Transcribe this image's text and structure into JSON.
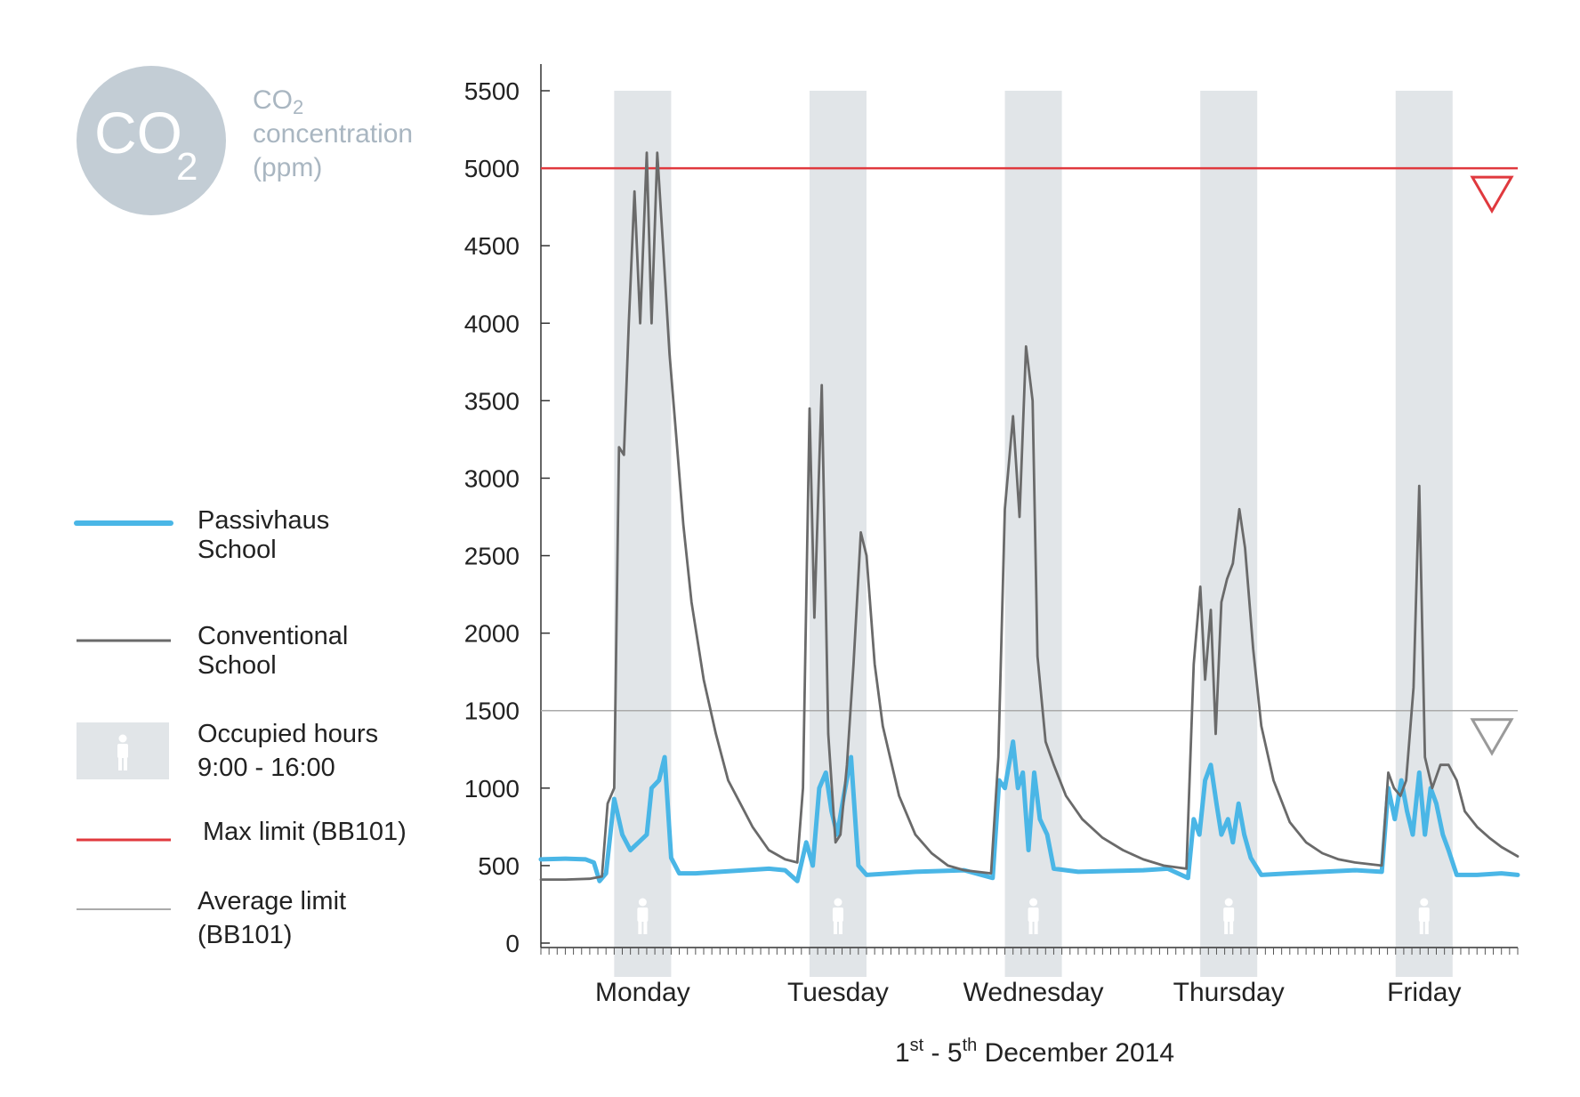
{
  "badge": {
    "symbol": "CO",
    "subscript": "2",
    "color": "#c3cdd5"
  },
  "unit_title": {
    "line1": "CO",
    "line1_sub": "2",
    "line2": "concentration",
    "line3": "(ppm)"
  },
  "legend": {
    "passivhaus": {
      "line1": "Passivhaus",
      "line2": "School",
      "color": "#4ab6e6"
    },
    "conventional": {
      "line1": "Conventional",
      "line2": "School",
      "color": "#6a6a6a"
    },
    "occupied": {
      "line1": "Occupied hours",
      "line2": "9:00 - 16:00",
      "color": "#e1e5e8"
    },
    "max_limit": {
      "line1": "Max limit (BB101)",
      "color": "#e0393e"
    },
    "avg_limit": {
      "line1": "Average limit",
      "line2": "(BB101)",
      "color": "#aaaaaa"
    }
  },
  "x_axis": {
    "prefix": "1",
    "sup1": "st",
    "mid": " - 5",
    "sup2": "th",
    "suffix": " December 2014"
  },
  "chart_data": {
    "type": "line",
    "ylim": [
      0,
      5500
    ],
    "yticks": [
      0,
      500,
      1000,
      1500,
      2000,
      2500,
      3000,
      3500,
      4000,
      4500,
      5000,
      5500
    ],
    "xlim": [
      0,
      120
    ],
    "days": [
      "Monday",
      "Tuesday",
      "Wednesday",
      "Thursday",
      "Friday"
    ],
    "occupied_hours": {
      "start": 9,
      "end": 16
    },
    "thresholds": [
      {
        "name": "Max limit (BB101)",
        "value": 5000,
        "color": "#e0393e"
      },
      {
        "name": "Average limit (BB101)",
        "value": 1500,
        "color": "#aaaaaa"
      }
    ],
    "series": [
      {
        "name": "Conventional School",
        "color": "#6a6a6a",
        "points": [
          [
            0,
            410
          ],
          [
            3,
            410
          ],
          [
            6,
            415
          ],
          [
            7.5,
            430
          ],
          [
            8.2,
            900
          ],
          [
            9,
            1000
          ],
          [
            9.6,
            3200
          ],
          [
            10.2,
            3150
          ],
          [
            10.8,
            4000
          ],
          [
            11.5,
            4850
          ],
          [
            12.2,
            4000
          ],
          [
            13,
            5100
          ],
          [
            13.6,
            4000
          ],
          [
            14.3,
            5100
          ],
          [
            15,
            4500
          ],
          [
            15.8,
            3800
          ],
          [
            16.5,
            3350
          ],
          [
            17.5,
            2700
          ],
          [
            18.5,
            2200
          ],
          [
            20,
            1700
          ],
          [
            21.5,
            1350
          ],
          [
            23,
            1050
          ],
          [
            24.5,
            900
          ],
          [
            26,
            750
          ],
          [
            28,
            600
          ],
          [
            30,
            540
          ],
          [
            31.5,
            520
          ],
          [
            32.2,
            1000
          ],
          [
            33,
            3450
          ],
          [
            33.6,
            2100
          ],
          [
            34.5,
            3600
          ],
          [
            35.3,
            1350
          ],
          [
            36.2,
            650
          ],
          [
            36.8,
            700
          ],
          [
            37.6,
            1150
          ],
          [
            38.4,
            1800
          ],
          [
            39.3,
            2650
          ],
          [
            40,
            2500
          ],
          [
            41,
            1800
          ],
          [
            42,
            1400
          ],
          [
            44,
            950
          ],
          [
            46,
            700
          ],
          [
            48,
            580
          ],
          [
            50,
            500
          ],
          [
            52,
            470
          ],
          [
            55.3,
            450
          ],
          [
            56.2,
            1200
          ],
          [
            57,
            2800
          ],
          [
            58,
            3400
          ],
          [
            58.8,
            2750
          ],
          [
            59.6,
            3850
          ],
          [
            60.4,
            3500
          ],
          [
            61,
            1850
          ],
          [
            62,
            1300
          ],
          [
            63,
            1150
          ],
          [
            64.5,
            950
          ],
          [
            66.5,
            800
          ],
          [
            69,
            680
          ],
          [
            71.5,
            600
          ],
          [
            74,
            540
          ],
          [
            76.5,
            500
          ],
          [
            79.3,
            480
          ],
          [
            80.2,
            1800
          ],
          [
            81,
            2300
          ],
          [
            81.6,
            1700
          ],
          [
            82.3,
            2150
          ],
          [
            82.9,
            1350
          ],
          [
            83.6,
            2200
          ],
          [
            84.3,
            2350
          ],
          [
            85,
            2450
          ],
          [
            85.8,
            2800
          ],
          [
            86.5,
            2550
          ],
          [
            87.5,
            1900
          ],
          [
            88.5,
            1400
          ],
          [
            90,
            1050
          ],
          [
            92,
            780
          ],
          [
            94,
            650
          ],
          [
            96,
            580
          ],
          [
            98,
            540
          ],
          [
            100,
            520
          ],
          [
            103.3,
            500
          ],
          [
            104.1,
            1100
          ],
          [
            104.8,
            1000
          ],
          [
            105.6,
            950
          ],
          [
            106.3,
            1050
          ],
          [
            107.2,
            1650
          ],
          [
            107.9,
            2950
          ],
          [
            108.6,
            1200
          ],
          [
            109.5,
            1000
          ],
          [
            110.5,
            1150
          ],
          [
            111.5,
            1150
          ],
          [
            112.5,
            1050
          ],
          [
            113.5,
            850
          ],
          [
            115,
            750
          ],
          [
            116.5,
            680
          ],
          [
            118,
            620
          ],
          [
            120,
            560
          ]
        ]
      },
      {
        "name": "Passivhaus School",
        "color": "#4ab6e6",
        "points": [
          [
            0,
            540
          ],
          [
            3,
            545
          ],
          [
            5.5,
            540
          ],
          [
            6.5,
            520
          ],
          [
            7.2,
            400
          ],
          [
            8,
            450
          ],
          [
            9,
            930
          ],
          [
            10,
            700
          ],
          [
            11,
            600
          ],
          [
            12,
            650
          ],
          [
            13,
            700
          ],
          [
            13.6,
            1000
          ],
          [
            14.5,
            1050
          ],
          [
            15.2,
            1200
          ],
          [
            16,
            550
          ],
          [
            17,
            450
          ],
          [
            19,
            450
          ],
          [
            22,
            460
          ],
          [
            25,
            470
          ],
          [
            28,
            480
          ],
          [
            30,
            470
          ],
          [
            31.5,
            400
          ],
          [
            32.6,
            650
          ],
          [
            33.4,
            500
          ],
          [
            34.2,
            1000
          ],
          [
            35,
            1100
          ],
          [
            35.7,
            850
          ],
          [
            36.4,
            700
          ],
          [
            37.2,
            950
          ],
          [
            38.1,
            1200
          ],
          [
            39,
            500
          ],
          [
            40,
            440
          ],
          [
            43,
            450
          ],
          [
            46,
            460
          ],
          [
            49,
            465
          ],
          [
            52,
            470
          ],
          [
            55.5,
            420
          ],
          [
            56.3,
            1050
          ],
          [
            57,
            1000
          ],
          [
            58,
            1300
          ],
          [
            58.6,
            1000
          ],
          [
            59.2,
            1100
          ],
          [
            59.9,
            600
          ],
          [
            60.6,
            1100
          ],
          [
            61.3,
            800
          ],
          [
            62.2,
            700
          ],
          [
            63,
            480
          ],
          [
            66,
            460
          ],
          [
            70,
            465
          ],
          [
            74,
            470
          ],
          [
            77,
            480
          ],
          [
            79.5,
            420
          ],
          [
            80.2,
            800
          ],
          [
            80.9,
            700
          ],
          [
            81.6,
            1050
          ],
          [
            82.3,
            1150
          ],
          [
            83,
            900
          ],
          [
            83.6,
            700
          ],
          [
            84.4,
            800
          ],
          [
            85,
            650
          ],
          [
            85.7,
            900
          ],
          [
            86.4,
            700
          ],
          [
            87.2,
            550
          ],
          [
            88.5,
            440
          ],
          [
            92,
            450
          ],
          [
            96,
            460
          ],
          [
            100,
            470
          ],
          [
            103.3,
            460
          ],
          [
            104.1,
            1000
          ],
          [
            104.9,
            800
          ],
          [
            105.7,
            1050
          ],
          [
            106.4,
            850
          ],
          [
            107.1,
            700
          ],
          [
            107.9,
            1100
          ],
          [
            108.6,
            700
          ],
          [
            109.3,
            1000
          ],
          [
            110,
            900
          ],
          [
            110.8,
            700
          ],
          [
            111.5,
            600
          ],
          [
            112.5,
            440
          ],
          [
            115,
            440
          ],
          [
            118,
            450
          ],
          [
            120,
            440
          ]
        ]
      }
    ]
  }
}
